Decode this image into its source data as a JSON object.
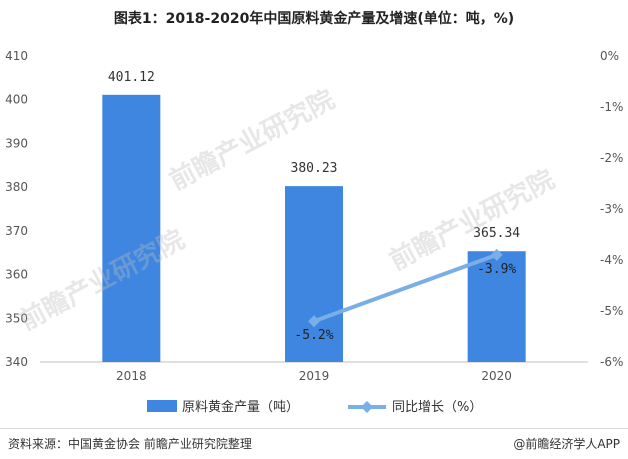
{
  "title": "图表1：2018-2020年中国原料黄金产量及增速(单位：吨，%)",
  "watermark": "前瞻产业研究院",
  "footer": {
    "source": "资料来源：中国黄金协会 前瞻产业研究院整理",
    "brand": "@前瞻经济学人APP"
  },
  "colors": {
    "bar": "#3e86e0",
    "line": "#7aaee6",
    "axis_text": "#555555",
    "grid": "#ececec"
  },
  "chart_data": {
    "type": "bar",
    "categories": [
      "2018",
      "2019",
      "2020"
    ],
    "series": [
      {
        "name": "原料黄金产量（吨）",
        "type": "bar",
        "axis": "left",
        "values": [
          401.12,
          380.23,
          365.34
        ],
        "labels": [
          "401.12",
          "380.23",
          "365.34"
        ]
      },
      {
        "name": "同比增长（%）",
        "type": "line",
        "axis": "right",
        "values": [
          null,
          -5.2,
          -3.9
        ],
        "labels": [
          "",
          "-5.2%",
          "-3.9%"
        ]
      }
    ],
    "left_axis": {
      "min": 340,
      "max": 410,
      "ticks": [
        340,
        350,
        360,
        370,
        380,
        390,
        400,
        410
      ],
      "tick_labels": [
        "340",
        "350",
        "360",
        "370",
        "380",
        "390",
        "400",
        "410"
      ]
    },
    "right_axis": {
      "min": -6,
      "max": 0,
      "ticks": [
        0,
        -1,
        -2,
        -3,
        -4,
        -5,
        -6
      ],
      "tick_labels": [
        "0%",
        "-1%",
        "-2%",
        "-3%",
        "-4%",
        "-5%",
        "-6%"
      ]
    },
    "legend_position": "bottom"
  }
}
